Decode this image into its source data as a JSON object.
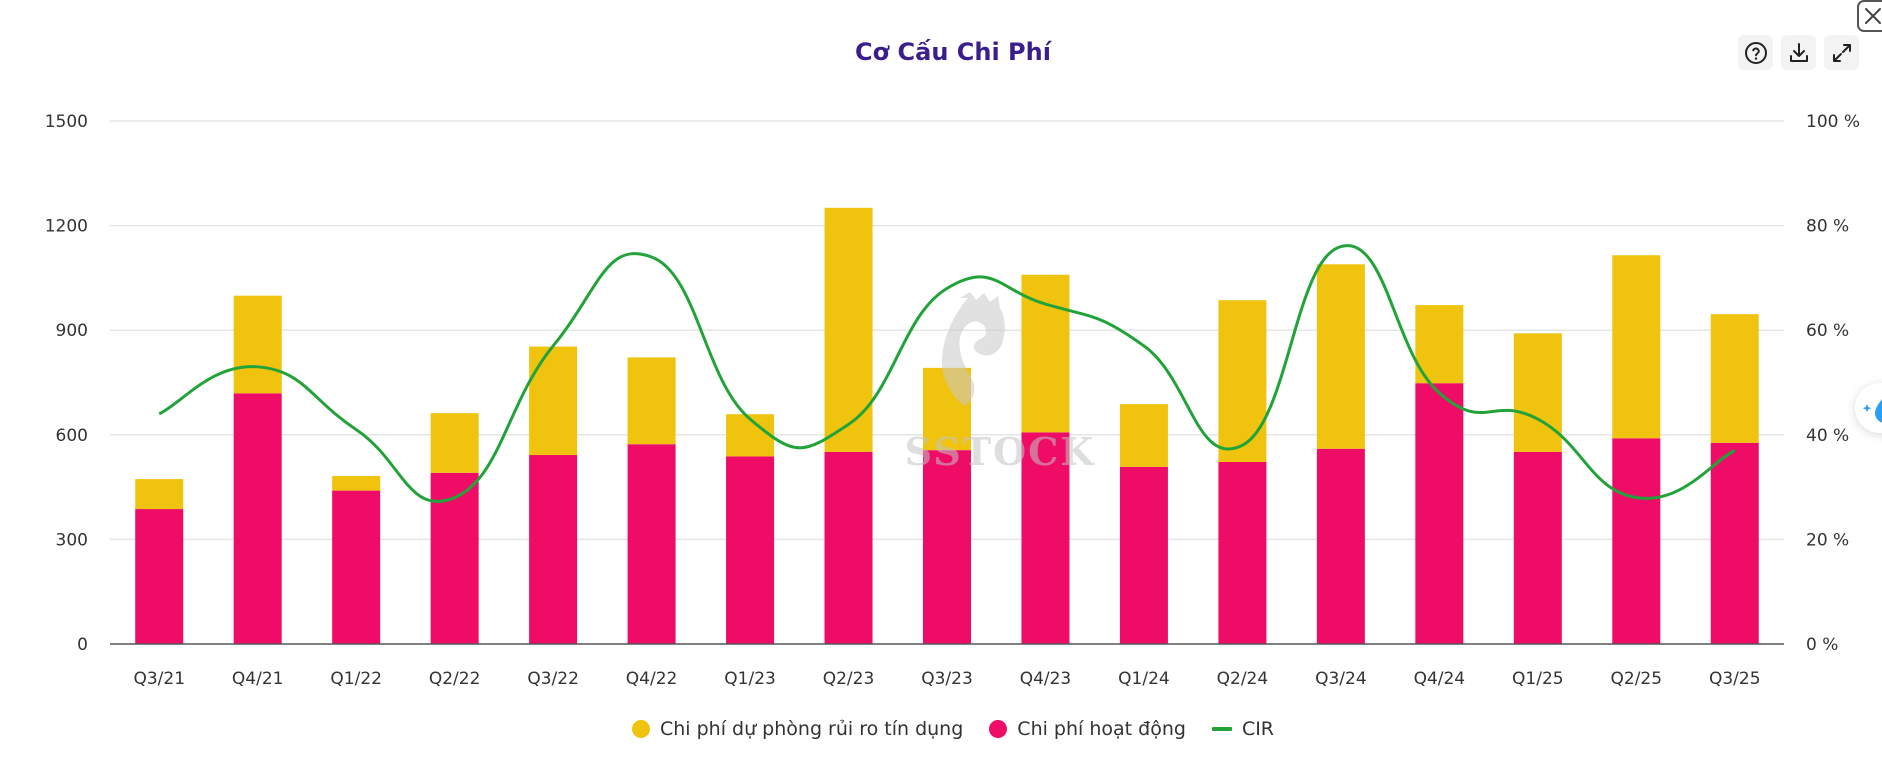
{
  "header": {
    "title": "Cơ Cấu Chi Phí",
    "help_icon": "question-circle-icon",
    "download_icon": "download-icon",
    "expand_icon": "expand-icon",
    "close_icon": "close-icon"
  },
  "watermark": {
    "text": "SSTOCK",
    "icon": "horse-head-logo"
  },
  "floating_button": {
    "icon": "sparkle-droplet-icon"
  },
  "colors": {
    "provision": "#f0c30f",
    "operating": "#ee0c66",
    "cir": "#22a33a",
    "title": "#3a1e8c",
    "grid": "#e5e5e5"
  },
  "chart_data": {
    "type": "bar",
    "stacked": true,
    "title": "Cơ Cấu Chi Phí",
    "xlabel": "",
    "ylabel": "",
    "y2label": "",
    "grid": true,
    "legend_position": "bottom-center",
    "categories": [
      "Q3/21",
      "Q4/21",
      "Q1/22",
      "Q2/22",
      "Q3/22",
      "Q4/22",
      "Q1/23",
      "Q2/23",
      "Q3/23",
      "Q4/23",
      "Q1/24",
      "Q2/24",
      "Q3/24",
      "Q4/24",
      "Q1/25",
      "Q2/25",
      "Q3/25"
    ],
    "ylim": [
      0,
      1500
    ],
    "yticks": [
      "0",
      "300",
      "600",
      "900",
      "1200",
      "1500"
    ],
    "yticks_values": [
      0,
      300,
      600,
      900,
      1200,
      1500
    ],
    "y2lim": [
      0,
      100
    ],
    "y2ticks": [
      "0 %",
      "20 %",
      "40 %",
      "60 %",
      "80 %",
      "100 %"
    ],
    "y2ticks_values": [
      0,
      20,
      40,
      60,
      80,
      100
    ],
    "series": [
      {
        "name": "Chi phí hoạt động",
        "type": "bar",
        "axis": "left",
        "color": "#ee0c66",
        "values": [
          387,
          719,
          440,
          491,
          542,
          573,
          538,
          551,
          556,
          607,
          508,
          522,
          560,
          748,
          551,
          590,
          577
        ]
      },
      {
        "name": "Chi phí dự phòng rủi ro tín dụng",
        "type": "bar",
        "axis": "left",
        "color": "#f0c30f",
        "values": [
          86,
          280,
          42,
          171,
          311,
          249,
          121,
          700,
          236,
          452,
          180,
          464,
          529,
          224,
          340,
          525,
          369
        ]
      },
      {
        "name": "CIR",
        "type": "line",
        "axis": "right",
        "smooth": true,
        "color": "#22a33a",
        "values": [
          44,
          53,
          41,
          28,
          57,
          74,
          43,
          42,
          68,
          65,
          57,
          38,
          76,
          48,
          43,
          28,
          37
        ]
      }
    ],
    "legend": [
      {
        "label": "Chi phí dự phòng rủi ro tín dụng",
        "marker": "circle",
        "color": "#f0c30f"
      },
      {
        "label": "Chi phí hoạt động",
        "marker": "circle",
        "color": "#ee0c66"
      },
      {
        "label": "CIR",
        "marker": "line",
        "color": "#22a33a"
      }
    ]
  }
}
